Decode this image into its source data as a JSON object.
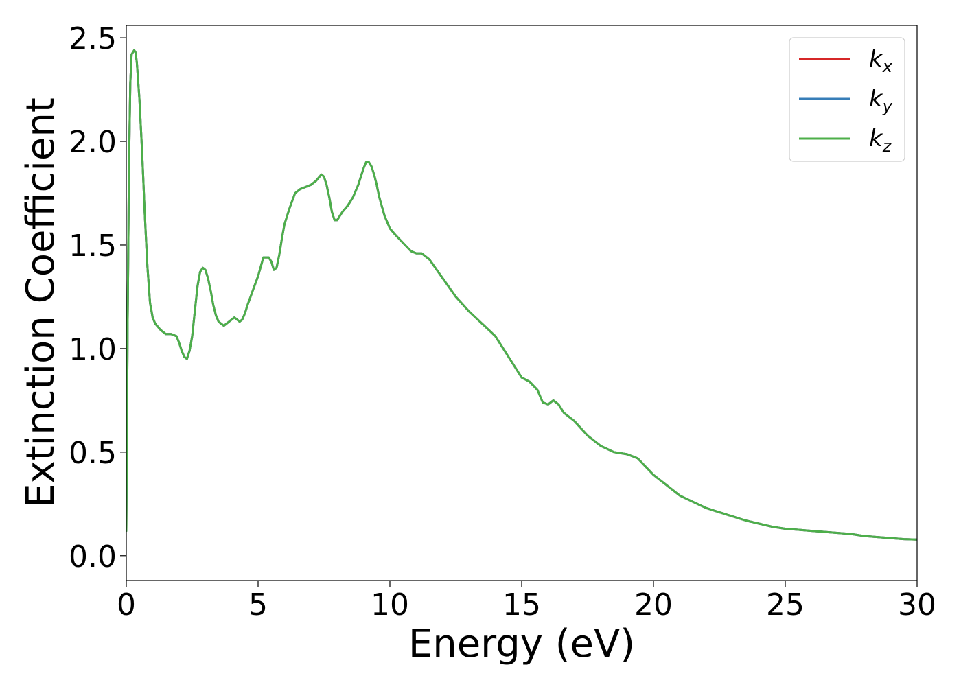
{
  "chart_data": {
    "type": "line",
    "title": "",
    "xlabel": "Energy (eV)",
    "ylabel": "Extinction Coefficient",
    "xlim": [
      0,
      30
    ],
    "ylim": [
      -0.12,
      2.56
    ],
    "xticks": [
      0,
      5,
      10,
      15,
      20,
      25,
      30
    ],
    "xtick_labels": [
      "0",
      "5",
      "10",
      "15",
      "20",
      "25",
      "30"
    ],
    "yticks": [
      0.0,
      0.5,
      1.0,
      1.5,
      2.0,
      2.5
    ],
    "ytick_labels": [
      "0.0",
      "0.5",
      "1.0",
      "1.5",
      "2.0",
      "2.5"
    ],
    "grid": false,
    "legend": {
      "position": "top-right"
    },
    "x": [
      0.0,
      0.05,
      0.1,
      0.15,
      0.2,
      0.3,
      0.35,
      0.4,
      0.5,
      0.6,
      0.7,
      0.8,
      0.9,
      1.0,
      1.1,
      1.3,
      1.5,
      1.7,
      1.9,
      2.0,
      2.1,
      2.2,
      2.3,
      2.4,
      2.5,
      2.6,
      2.7,
      2.8,
      2.9,
      3.0,
      3.1,
      3.2,
      3.3,
      3.4,
      3.5,
      3.6,
      3.7,
      3.8,
      4.0,
      4.1,
      4.2,
      4.3,
      4.4,
      4.5,
      4.6,
      4.8,
      5.0,
      5.2,
      5.4,
      5.5,
      5.6,
      5.7,
      5.8,
      5.9,
      6.0,
      6.2,
      6.4,
      6.6,
      6.8,
      7.0,
      7.2,
      7.4,
      7.5,
      7.6,
      7.7,
      7.8,
      7.9,
      8.0,
      8.1,
      8.2,
      8.4,
      8.6,
      8.8,
      9.0,
      9.1,
      9.2,
      9.3,
      9.4,
      9.5,
      9.6,
      9.8,
      10.0,
      10.2,
      10.5,
      10.8,
      11.0,
      11.2,
      11.5,
      12.0,
      12.5,
      13.0,
      13.5,
      14.0,
      14.5,
      15.0,
      15.3,
      15.6,
      15.8,
      16.0,
      16.2,
      16.4,
      16.6,
      17.0,
      17.5,
      18.0,
      18.5,
      19.0,
      19.4,
      20.0,
      20.5,
      21.0,
      21.5,
      22.0,
      22.5,
      23.0,
      23.5,
      24.0,
      24.5,
      25.0,
      25.5,
      26.0,
      26.5,
      27.0,
      27.5,
      28.0,
      28.5,
      29.0,
      29.5,
      30.0
    ],
    "series": [
      {
        "name": "k_x",
        "color": "#d62728",
        "values": [
          0.12,
          1.1,
          1.85,
          2.28,
          2.42,
          2.44,
          2.43,
          2.38,
          2.2,
          1.95,
          1.65,
          1.4,
          1.22,
          1.15,
          1.12,
          1.09,
          1.07,
          1.07,
          1.06,
          1.03,
          0.99,
          0.96,
          0.95,
          0.99,
          1.06,
          1.18,
          1.3,
          1.37,
          1.39,
          1.38,
          1.34,
          1.28,
          1.21,
          1.16,
          1.13,
          1.12,
          1.11,
          1.12,
          1.14,
          1.15,
          1.14,
          1.13,
          1.14,
          1.17,
          1.21,
          1.28,
          1.35,
          1.44,
          1.44,
          1.42,
          1.38,
          1.39,
          1.45,
          1.53,
          1.6,
          1.68,
          1.75,
          1.77,
          1.78,
          1.79,
          1.81,
          1.84,
          1.83,
          1.79,
          1.73,
          1.66,
          1.62,
          1.62,
          1.64,
          1.66,
          1.69,
          1.73,
          1.79,
          1.87,
          1.9,
          1.9,
          1.88,
          1.84,
          1.79,
          1.73,
          1.64,
          1.58,
          1.55,
          1.51,
          1.47,
          1.46,
          1.46,
          1.43,
          1.34,
          1.25,
          1.18,
          1.12,
          1.06,
          0.96,
          0.86,
          0.84,
          0.8,
          0.74,
          0.73,
          0.75,
          0.73,
          0.69,
          0.65,
          0.58,
          0.53,
          0.5,
          0.49,
          0.47,
          0.39,
          0.34,
          0.29,
          0.26,
          0.23,
          0.21,
          0.19,
          0.17,
          0.155,
          0.14,
          0.13,
          0.125,
          0.12,
          0.115,
          0.11,
          0.105,
          0.095,
          0.09,
          0.085,
          0.08,
          0.078
        ]
      },
      {
        "name": "k_y",
        "color": "#377eb8",
        "values": [
          0.12,
          1.1,
          1.85,
          2.28,
          2.42,
          2.44,
          2.43,
          2.38,
          2.2,
          1.95,
          1.65,
          1.4,
          1.22,
          1.15,
          1.12,
          1.09,
          1.07,
          1.07,
          1.06,
          1.03,
          0.99,
          0.96,
          0.95,
          0.99,
          1.06,
          1.18,
          1.3,
          1.37,
          1.39,
          1.38,
          1.34,
          1.28,
          1.21,
          1.16,
          1.13,
          1.12,
          1.11,
          1.12,
          1.14,
          1.15,
          1.14,
          1.13,
          1.14,
          1.17,
          1.21,
          1.28,
          1.35,
          1.44,
          1.44,
          1.42,
          1.38,
          1.39,
          1.45,
          1.53,
          1.6,
          1.68,
          1.75,
          1.77,
          1.78,
          1.79,
          1.81,
          1.84,
          1.83,
          1.79,
          1.73,
          1.66,
          1.62,
          1.62,
          1.64,
          1.66,
          1.69,
          1.73,
          1.79,
          1.87,
          1.9,
          1.9,
          1.88,
          1.84,
          1.79,
          1.73,
          1.64,
          1.58,
          1.55,
          1.51,
          1.47,
          1.46,
          1.46,
          1.43,
          1.34,
          1.25,
          1.18,
          1.12,
          1.06,
          0.96,
          0.86,
          0.84,
          0.8,
          0.74,
          0.73,
          0.75,
          0.73,
          0.69,
          0.65,
          0.58,
          0.53,
          0.5,
          0.49,
          0.47,
          0.39,
          0.34,
          0.29,
          0.26,
          0.23,
          0.21,
          0.19,
          0.17,
          0.155,
          0.14,
          0.13,
          0.125,
          0.12,
          0.115,
          0.11,
          0.105,
          0.095,
          0.09,
          0.085,
          0.08,
          0.078
        ]
      },
      {
        "name": "k_z",
        "color": "#4daf4a",
        "values": [
          0.12,
          1.1,
          1.85,
          2.28,
          2.42,
          2.44,
          2.43,
          2.38,
          2.2,
          1.95,
          1.65,
          1.4,
          1.22,
          1.15,
          1.12,
          1.09,
          1.07,
          1.07,
          1.06,
          1.03,
          0.99,
          0.96,
          0.95,
          0.99,
          1.06,
          1.18,
          1.3,
          1.37,
          1.39,
          1.38,
          1.34,
          1.28,
          1.21,
          1.16,
          1.13,
          1.12,
          1.11,
          1.12,
          1.14,
          1.15,
          1.14,
          1.13,
          1.14,
          1.17,
          1.21,
          1.28,
          1.35,
          1.44,
          1.44,
          1.42,
          1.38,
          1.39,
          1.45,
          1.53,
          1.6,
          1.68,
          1.75,
          1.77,
          1.78,
          1.79,
          1.81,
          1.84,
          1.83,
          1.79,
          1.73,
          1.66,
          1.62,
          1.62,
          1.64,
          1.66,
          1.69,
          1.73,
          1.79,
          1.87,
          1.9,
          1.9,
          1.88,
          1.84,
          1.79,
          1.73,
          1.64,
          1.58,
          1.55,
          1.51,
          1.47,
          1.46,
          1.46,
          1.43,
          1.34,
          1.25,
          1.18,
          1.12,
          1.06,
          0.96,
          0.86,
          0.84,
          0.8,
          0.74,
          0.73,
          0.75,
          0.73,
          0.69,
          0.65,
          0.58,
          0.53,
          0.5,
          0.49,
          0.47,
          0.39,
          0.34,
          0.29,
          0.26,
          0.23,
          0.21,
          0.19,
          0.17,
          0.155,
          0.14,
          0.13,
          0.125,
          0.12,
          0.115,
          0.11,
          0.105,
          0.095,
          0.09,
          0.085,
          0.08,
          0.078
        ]
      }
    ]
  }
}
